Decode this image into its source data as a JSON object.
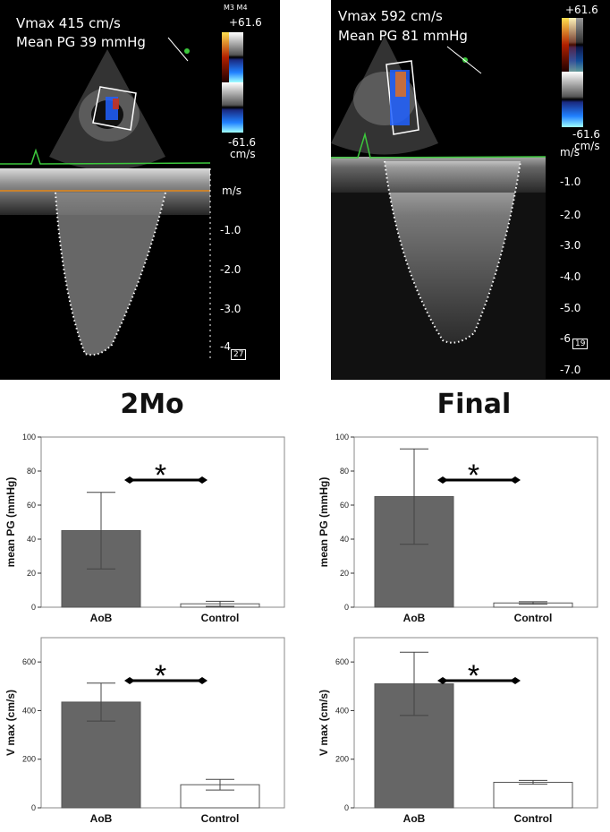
{
  "echo_panels": [
    {
      "vmax_label": "Vmax 415  cm/s",
      "meanpg_label": "Mean PG 39 mmHg",
      "mode_label": "M3 M4",
      "scale_max": "+61.6",
      "scale_min": "-61.6",
      "scale_unit": "cm/s",
      "velocity_unit": "m/s",
      "velocity_ticks": [
        "-1.0",
        "-2.0",
        "-3.0",
        "-4"
      ],
      "badge": "27"
    },
    {
      "vmax_label": "Vmax 592  cm/s",
      "meanpg_label": "Mean PG 81 mmHg",
      "scale_max": "+61.6",
      "scale_min": "-61.6",
      "scale_unit": "cm/s",
      "velocity_unit": "m/s",
      "velocity_ticks": [
        "-1.0",
        "-2.0",
        "-3.0",
        "-4.0",
        "-5.0",
        "-6",
        "-7.0"
      ],
      "badge": "19"
    }
  ],
  "titles": {
    "left": "2Mo",
    "right": "Final"
  },
  "colors": {
    "bar_aob": "#666666",
    "bar_control": "#ffffff",
    "trace": "#3cc83c",
    "baseline": "#c8822e"
  },
  "chart_data": [
    {
      "type": "bar",
      "group": "2Mo",
      "categories": [
        "AoB",
        "Control"
      ],
      "values": [
        45,
        2
      ],
      "error": [
        22.5,
        1.5
      ],
      "ylabel": "mean PG (mmHg)",
      "ylim": [
        0,
        100
      ],
      "yticks": [
        0,
        20,
        40,
        60,
        80,
        100
      ],
      "significance": "*"
    },
    {
      "type": "bar",
      "group": "Final",
      "categories": [
        "AoB",
        "Control"
      ],
      "values": [
        65,
        2.5
      ],
      "error": [
        28,
        0.7
      ],
      "ylabel": "mean PG (mmHg)",
      "ylim": [
        0,
        100
      ],
      "yticks": [
        0,
        20,
        40,
        60,
        80,
        100
      ],
      "significance": "*"
    },
    {
      "type": "bar",
      "group": "2Mo",
      "categories": [
        "AoB",
        "Control"
      ],
      "values": [
        435,
        95
      ],
      "error": [
        78,
        22
      ],
      "ylabel": "V max (cm/s)",
      "ylim": [
        0,
        700
      ],
      "yticks": [
        0,
        200,
        400,
        600
      ],
      "significance": "*"
    },
    {
      "type": "bar",
      "group": "Final",
      "categories": [
        "AoB",
        "Control"
      ],
      "values": [
        510,
        105
      ],
      "error": [
        130,
        8
      ],
      "ylabel": "V max (cm/s)",
      "ylim": [
        0,
        700
      ],
      "yticks": [
        0,
        200,
        400,
        600
      ],
      "significance": "*"
    }
  ]
}
